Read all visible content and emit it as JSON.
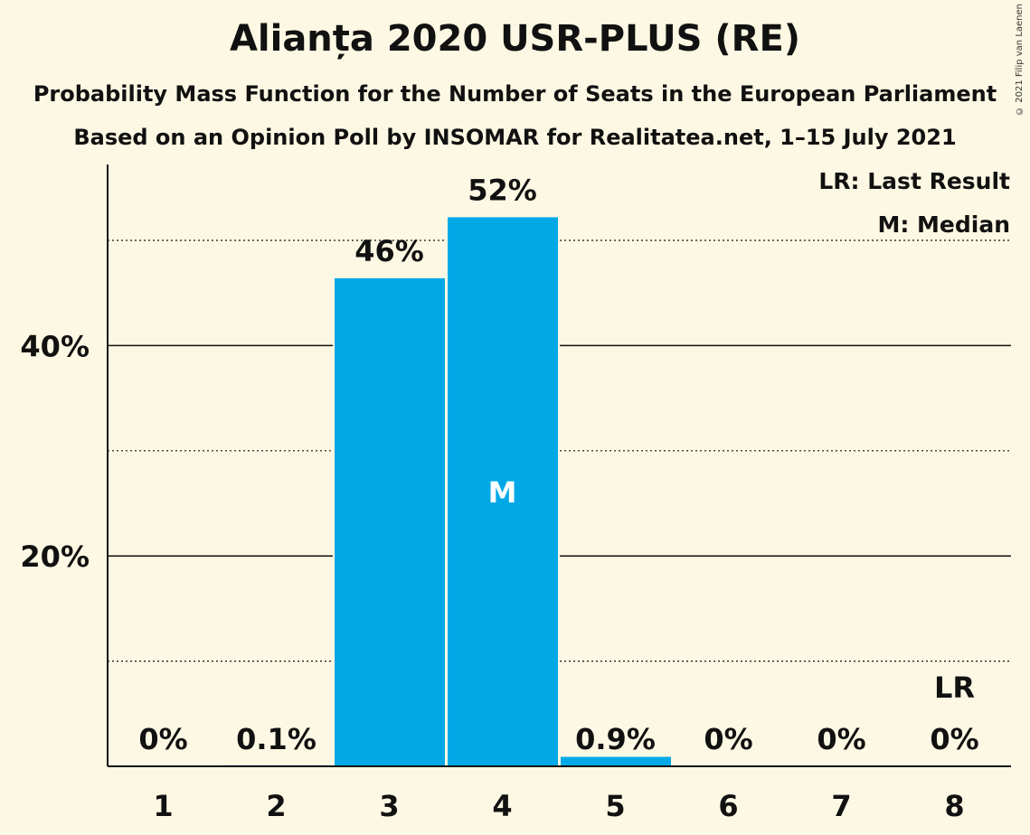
{
  "header": {
    "title": "Alianța 2020 USR-PLUS (RE)",
    "subtitle1": "Probability Mass Function for the Number of Seats in the European Parliament",
    "subtitle2": "Based on an Opinion Poll by INSOMAR for Realitatea.net, 1–15 July 2021",
    "copyright": "© 2021 Filip van Laenen"
  },
  "legend": {
    "last_result": "LR: Last Result",
    "median": "M: Median"
  },
  "chart_data": {
    "type": "bar",
    "categories": [
      "1",
      "2",
      "3",
      "4",
      "5",
      "6",
      "7",
      "8"
    ],
    "values": [
      0,
      0.1,
      46.4,
      52.2,
      0.9,
      0,
      0,
      0
    ],
    "data_labels": [
      "0%",
      "0.1%",
      "46%",
      "52%",
      "0.9%",
      "0%",
      "0%",
      "0%"
    ],
    "ylim": [
      0,
      57
    ],
    "y_ticks_major": [
      20,
      40
    ],
    "y_tick_labels": [
      "20%",
      "40%"
    ],
    "y_ticks_minor": [
      10,
      30,
      50
    ],
    "bar_color": "#00a9e6",
    "median_category": "4",
    "median_marker": "M",
    "last_result_category": "8",
    "last_result_marker": "LR",
    "legend_position": "top-right"
  }
}
